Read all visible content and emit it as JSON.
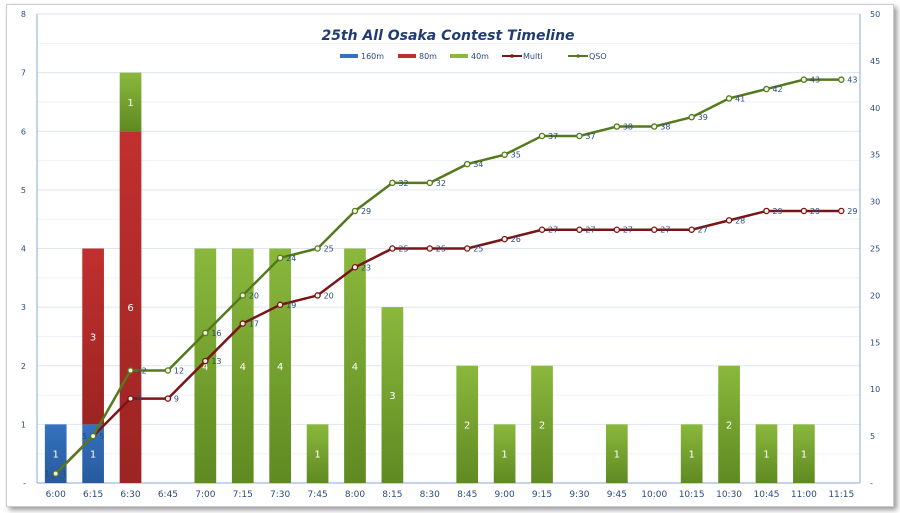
{
  "chart_data": {
    "type": "bar+line",
    "title": "25th All Osaka Contest Timeline",
    "categories": [
      "6:00",
      "6:15",
      "6:30",
      "6:45",
      "7:00",
      "7:15",
      "7:30",
      "7:45",
      "8:00",
      "8:15",
      "8:30",
      "8:45",
      "9:00",
      "9:15",
      "9:30",
      "9:45",
      "10:00",
      "10:15",
      "10:30",
      "10:45",
      "11:00",
      "11:15"
    ],
    "bar_series": [
      {
        "name": "160m",
        "color": "#3572c0",
        "values": [
          1,
          1,
          0,
          0,
          0,
          0,
          0,
          0,
          0,
          0,
          0,
          0,
          0,
          0,
          0,
          0,
          0,
          0,
          0,
          0,
          0,
          0
        ]
      },
      {
        "name": "80m",
        "color": "#c0302e",
        "values": [
          0,
          3,
          6,
          0,
          0,
          0,
          0,
          0,
          0,
          0,
          0,
          0,
          0,
          0,
          0,
          0,
          0,
          0,
          0,
          0,
          0,
          0
        ]
      },
      {
        "name": "40m",
        "color": "#8ab83c",
        "values": [
          0,
          0,
          1,
          0,
          4,
          4,
          4,
          1,
          4,
          3,
          0,
          2,
          1,
          2,
          0,
          1,
          0,
          1,
          2,
          1,
          1,
          0
        ]
      }
    ],
    "line_series": [
      {
        "name": "Multi",
        "color": "#7a1416",
        "values": [
          1,
          5,
          9,
          9,
          13,
          17,
          19,
          20,
          23,
          25,
          25,
          25,
          26,
          27,
          27,
          27,
          27,
          27,
          28,
          29,
          29,
          29
        ]
      },
      {
        "name": "QSO",
        "color": "#557a1e",
        "values": [
          1,
          5,
          12,
          12,
          16,
          20,
          24,
          25,
          29,
          32,
          32,
          34,
          35,
          37,
          37,
          38,
          38,
          39,
          41,
          42,
          43,
          43
        ]
      }
    ],
    "y_left": {
      "range": [
        0,
        8
      ],
      "ticks": [
        "-",
        "1",
        "2",
        "3",
        "4",
        "5",
        "6",
        "7",
        "8"
      ]
    },
    "y_right": {
      "range": [
        0,
        50
      ],
      "ticks": [
        "-",
        "5",
        "10",
        "15",
        "20",
        "25",
        "30",
        "35",
        "40",
        "45",
        "50"
      ]
    },
    "legend": "top-center",
    "grid": true
  }
}
